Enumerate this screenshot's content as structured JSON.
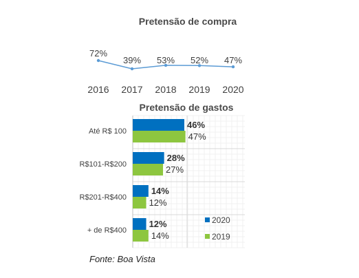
{
  "chart_data": [
    {
      "type": "line",
      "title": "Pretensão de compra",
      "x": [
        "2016",
        "2017",
        "2018",
        "2019",
        "2020"
      ],
      "values": [
        72,
        39,
        53,
        52,
        47
      ],
      "value_labels": [
        "72%",
        "39%",
        "53%",
        "52%",
        "47%"
      ],
      "color": "#5b9bd5"
    },
    {
      "type": "bar",
      "orientation": "horizontal",
      "title": "Pretensão de gastos",
      "categories": [
        "Até R$ 100",
        "R$101-R$200",
        "R$201-R$400",
        "+ de R$400"
      ],
      "xlim": [
        0,
        100
      ],
      "grid": true,
      "legend_position": "bottom-right",
      "series": [
        {
          "name": "2020",
          "values": [
            46,
            28,
            14,
            12
          ],
          "labels": [
            "46%",
            "28%",
            "14%",
            "12%"
          ],
          "color": "#0070c0",
          "label_bold": true
        },
        {
          "name": "2019",
          "values": [
            47,
            27,
            12,
            14
          ],
          "labels": [
            "47%",
            "27%",
            "12%",
            "14%"
          ],
          "color": "#8dc63f",
          "label_bold": false
        }
      ]
    }
  ],
  "source": "Fonte: Boa Vista"
}
